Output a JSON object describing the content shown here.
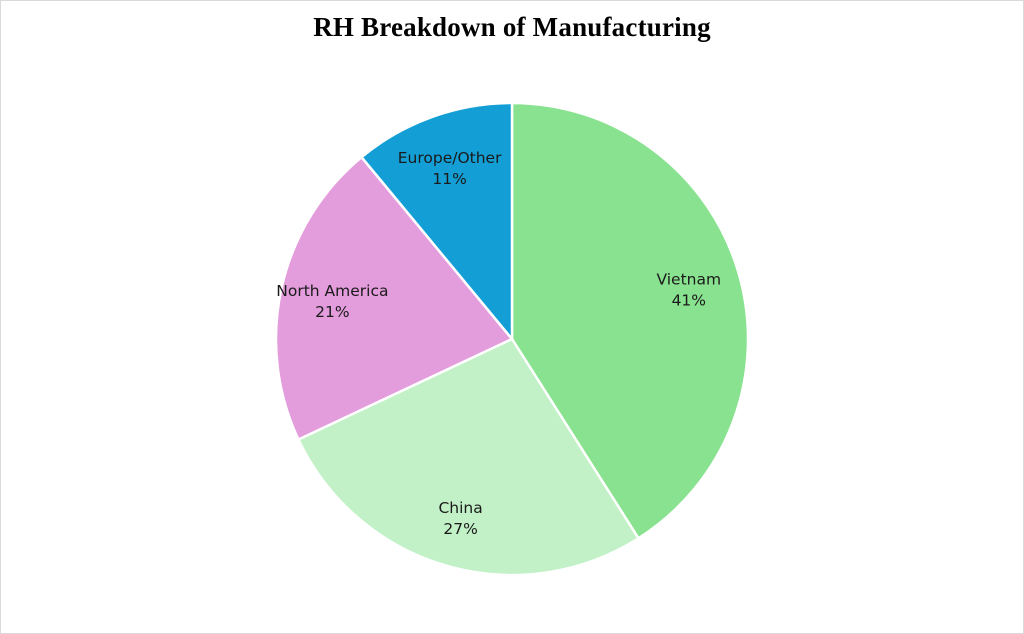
{
  "chart_data": {
    "type": "pie",
    "title": "RH Breakdown of Manufacturing",
    "start_angle_deg": 0,
    "direction": "clockwise",
    "slices": [
      {
        "label": "Vietnam",
        "percent_text": "41%",
        "value": 41,
        "color": "#88e28f"
      },
      {
        "label": "China",
        "percent_text": "27%",
        "value": 27,
        "color": "#c2f1c7"
      },
      {
        "label": "North America",
        "percent_text": "21%",
        "value": 21,
        "color": "#e39cdc"
      },
      {
        "label": "Europe/Other",
        "percent_text": "11%",
        "value": 11,
        "color": "#139fd6"
      }
    ]
  }
}
